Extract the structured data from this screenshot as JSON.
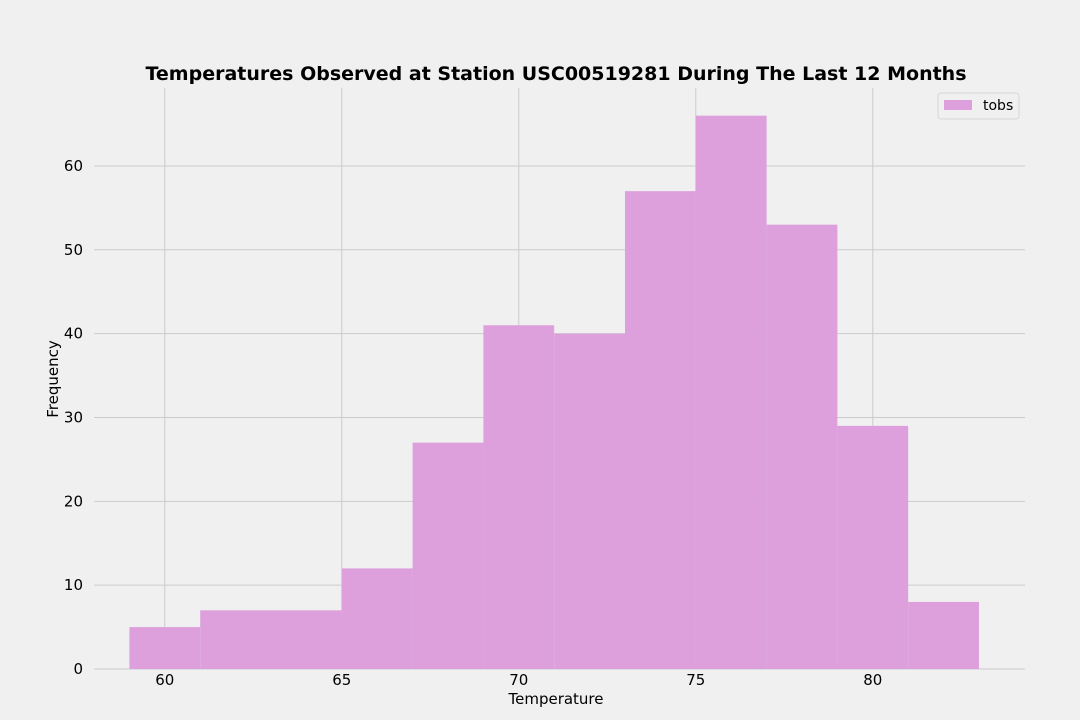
{
  "chart_data": {
    "type": "bar",
    "title": "Temperatures Observed at Station USC00519281 During The Last 12 Months",
    "xlabel": "Temperature",
    "ylabel": "Frequency",
    "x_ticks": [
      60,
      65,
      70,
      75,
      80
    ],
    "y_ticks": [
      0,
      10,
      20,
      30,
      40,
      50,
      60
    ],
    "xlim": [
      58,
      84.3
    ],
    "ylim": [
      0,
      69.3
    ],
    "grid": true,
    "legend_position": "top-right",
    "series": [
      {
        "name": "tobs",
        "color": "#dda0dd",
        "bins": [
          {
            "x0": 59,
            "x1": 61,
            "count": 5
          },
          {
            "x0": 61,
            "x1": 63,
            "count": 7
          },
          {
            "x0": 63,
            "x1": 65,
            "count": 7
          },
          {
            "x0": 65,
            "x1": 67,
            "count": 12
          },
          {
            "x0": 67,
            "x1": 69,
            "count": 27
          },
          {
            "x0": 69,
            "x1": 71,
            "count": 41
          },
          {
            "x0": 71,
            "x1": 73,
            "count": 40
          },
          {
            "x0": 73,
            "x1": 75,
            "count": 57
          },
          {
            "x0": 75,
            "x1": 77,
            "count": 66
          },
          {
            "x0": 77,
            "x1": 79,
            "count": 53
          },
          {
            "x0": 79,
            "x1": 81,
            "count": 29
          },
          {
            "x0": 81,
            "x1": 83,
            "count": 8
          }
        ]
      }
    ]
  }
}
